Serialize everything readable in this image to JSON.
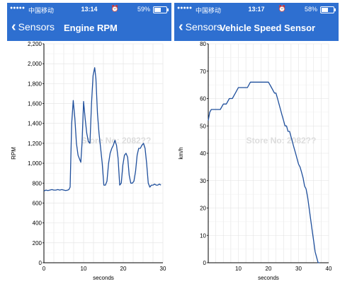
{
  "left": {
    "status": {
      "carrier": "中国移动",
      "time": "13:14",
      "battery": "59%",
      "battery_level": 0.59
    },
    "nav": {
      "back_label": "Sensors",
      "title": "Engine RPM"
    },
    "watermark": "Store No: 2082??",
    "chart_data": {
      "type": "line",
      "xlabel": "seconds",
      "ylabel": "RPM",
      "xlim": [
        0,
        30
      ],
      "ylim": [
        0,
        2200
      ],
      "xticks": [
        0,
        10,
        20,
        30
      ],
      "yticks": [
        0,
        200,
        400,
        600,
        800,
        1000,
        1200,
        1400,
        1600,
        1800,
        2000,
        2200
      ],
      "ytick_labels": [
        "0",
        "200",
        "400",
        "600",
        "800",
        "1,000",
        "1,200",
        "1,400",
        "1,600",
        "1,800",
        "2,000",
        "2,200"
      ],
      "grid": true,
      "series": [
        {
          "x": [
            0,
            0.5,
            1,
            1.5,
            2,
            2.5,
            3,
            3.5,
            4,
            4.5,
            5,
            5.5,
            6,
            6.3,
            6.6,
            7,
            7.4,
            7.8,
            8.2,
            8.6,
            9,
            9.3,
            9.6,
            10,
            10.4,
            10.8,
            11.2,
            11.6,
            12,
            12.4,
            12.8,
            13.1,
            13.5,
            13.9,
            14.3,
            14.7,
            15.1,
            15.5,
            15.9,
            16.3,
            16.7,
            17.1,
            17.5,
            17.9,
            18.3,
            18.7,
            19.1,
            19.5,
            19.9,
            20.3,
            20.7,
            21.1,
            21.5,
            21.9,
            22.3,
            22.7,
            23.1,
            23.5,
            23.9,
            24.3,
            24.7,
            25.1,
            25.5,
            25.9,
            26.3,
            26.7,
            27.1,
            27.5,
            27.9,
            28.3,
            28.7,
            29.1,
            29.5
          ],
          "y": [
            720,
            730,
            725,
            730,
            735,
            730,
            730,
            735,
            730,
            735,
            730,
            725,
            730,
            735,
            760,
            1400,
            1630,
            1450,
            1200,
            1080,
            1040,
            1010,
            1200,
            1620,
            1450,
            1300,
            1220,
            1200,
            1600,
            1880,
            1960,
            1850,
            1500,
            1300,
            1150,
            1000,
            780,
            780,
            820,
            1000,
            1100,
            1150,
            1180,
            1230,
            1180,
            1050,
            780,
            800,
            980,
            1080,
            1100,
            1060,
            880,
            800,
            800,
            820,
            920,
            1080,
            1150,
            1150,
            1180,
            1200,
            1150,
            1000,
            800,
            760,
            780,
            780,
            790,
            780,
            780,
            790,
            780
          ]
        }
      ]
    }
  },
  "right": {
    "status": {
      "carrier": "中国移动",
      "time": "13:17",
      "battery": "58%",
      "battery_level": 0.58
    },
    "nav": {
      "back_label": "Sensors",
      "title": "Vehicle Speed Sensor"
    },
    "watermark": "Store No: 2082??",
    "chart_data": {
      "type": "line",
      "xlabel": "seconds",
      "ylabel": "km/h",
      "xlim": [
        0,
        40
      ],
      "ylim": [
        0,
        80
      ],
      "xticks": [
        10,
        20,
        30,
        40
      ],
      "yticks": [
        0,
        10,
        20,
        30,
        40,
        50,
        60,
        70,
        80
      ],
      "grid": true,
      "series": [
        {
          "x": [
            0,
            0.5,
            1,
            2,
            3,
            4,
            5,
            6,
            7,
            8,
            9,
            10,
            11,
            12,
            13,
            14,
            15,
            16,
            17,
            18,
            19,
            20,
            21,
            22,
            22.5,
            23,
            23.5,
            24,
            24.5,
            25,
            25.5,
            26,
            26.5,
            27,
            27.5,
            28,
            28.5,
            29,
            29.5,
            30,
            30.5,
            31,
            31.5,
            32,
            32.5,
            33,
            33.5,
            34,
            34.5,
            35,
            35.5,
            36,
            36.5,
            37
          ],
          "y": [
            52,
            55,
            56,
            56,
            56,
            56,
            58,
            58,
            60,
            60,
            62,
            64,
            64,
            64,
            64,
            66,
            66,
            66,
            66,
            66,
            66,
            66,
            64,
            62,
            62,
            60,
            58,
            56,
            54,
            52,
            50,
            50,
            48,
            48,
            46,
            44,
            42,
            40,
            38,
            36,
            35,
            33,
            31,
            28,
            27,
            24,
            20,
            16,
            12,
            8,
            4,
            2,
            0,
            0
          ]
        }
      ]
    }
  }
}
